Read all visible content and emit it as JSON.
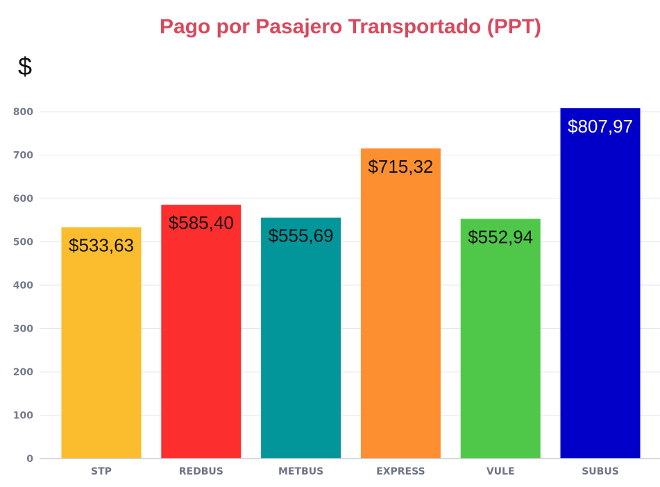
{
  "chart_data": {
    "type": "bar",
    "title": "Pago por Pasajero Transportado (PPT)",
    "ylabel": "$",
    "categories": [
      "STP",
      "REDBUS",
      "METBUS",
      "EXPRESS",
      "VULE",
      "SUBUS"
    ],
    "values": [
      533.63,
      585.4,
      555.69,
      715.32,
      552.94,
      807.97
    ],
    "data_labels": [
      "$533,63",
      "$585,40",
      "$555,69",
      "$715,32",
      "$552,94",
      "$807,97"
    ],
    "bar_colors": [
      "#fbbd2e",
      "#fd2e2e",
      "#02969a",
      "#fd8f31",
      "#4fc84a",
      "#0200c8"
    ],
    "yticks": [
      "0",
      "100",
      "200",
      "300",
      "400",
      "500",
      "600",
      "700",
      "800"
    ],
    "ylim": [
      0,
      800
    ],
    "grid": true,
    "legend": "none",
    "colors": {
      "title": "#d9485c",
      "unit": "#111111",
      "grid": "#e4e7ee",
      "axis": "#c8ccd6",
      "data_label_dark": "#111111",
      "data_label_light": "#ffffff"
    }
  }
}
